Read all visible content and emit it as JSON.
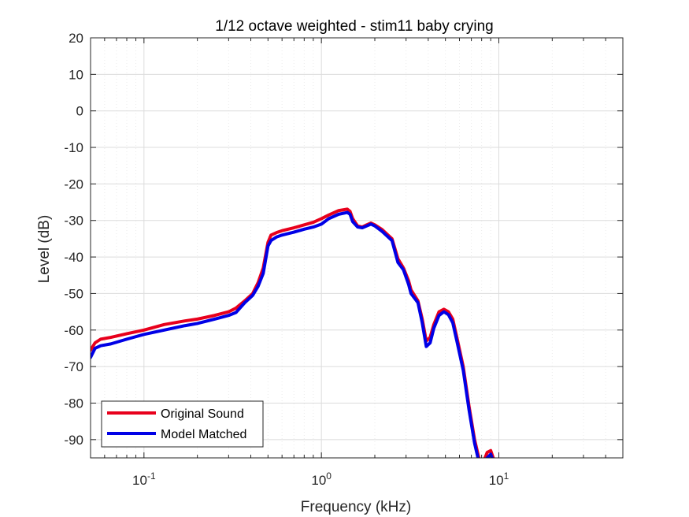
{
  "chart_data": {
    "type": "line",
    "title": "1/12 octave weighted - stim11 baby crying",
    "xlabel": "Frequency (kHz)",
    "ylabel": "Level (dB)",
    "xscale": "log",
    "xlim": [
      0.05,
      50
    ],
    "ylim": [
      -95,
      20
    ],
    "grid": true,
    "legend_placement": "bottom-left",
    "x_ticks": [
      {
        "value": 0.1,
        "base": "10",
        "exp": "-1"
      },
      {
        "value": 1,
        "base": "10",
        "exp": "0"
      },
      {
        "value": 10,
        "base": "10",
        "exp": "1"
      }
    ],
    "y_ticks": [
      {
        "value": 20,
        "label": "20"
      },
      {
        "value": 10,
        "label": "10"
      },
      {
        "value": 0,
        "label": "0"
      },
      {
        "value": -10,
        "label": "-10"
      },
      {
        "value": -20,
        "label": "-20"
      },
      {
        "value": -30,
        "label": "-30"
      },
      {
        "value": -40,
        "label": "-40"
      },
      {
        "value": -50,
        "label": "-50"
      },
      {
        "value": -60,
        "label": "-60"
      },
      {
        "value": -70,
        "label": "-70"
      },
      {
        "value": -80,
        "label": "-80"
      },
      {
        "value": -90,
        "label": "-90"
      }
    ],
    "series": [
      {
        "name": "Original Sound",
        "color": "#e8001c",
        "x": [
          0.05,
          0.053,
          0.057,
          0.065,
          0.08,
          0.1,
          0.13,
          0.17,
          0.2,
          0.25,
          0.3,
          0.33,
          0.37,
          0.41,
          0.44,
          0.47,
          0.5,
          0.52,
          0.56,
          0.6,
          0.7,
          0.8,
          0.9,
          1.0,
          1.1,
          1.25,
          1.4,
          1.45,
          1.5,
          1.6,
          1.7,
          1.8,
          1.9,
          2.0,
          2.2,
          2.5,
          2.7,
          2.9,
          3.1,
          3.2,
          3.5,
          3.7,
          3.9,
          4.1,
          4.3,
          4.6,
          4.9,
          5.2,
          5.5,
          5.8,
          6.3,
          6.8,
          7.3,
          7.8,
          8.2,
          8.6,
          9.0,
          9.3
        ],
        "y": [
          -65.5,
          -63.5,
          -62.5,
          -62.0,
          -61.0,
          -60.0,
          -58.5,
          -57.5,
          -57.0,
          -56.0,
          -55.0,
          -54.0,
          -52.0,
          -50.0,
          -47.0,
          -43.0,
          -36.0,
          -34.0,
          -33.3,
          -32.8,
          -32.0,
          -31.2,
          -30.5,
          -29.5,
          -28.5,
          -27.3,
          -26.9,
          -27.5,
          -29.5,
          -31.5,
          -31.8,
          -31.2,
          -30.7,
          -31.2,
          -32.5,
          -35.0,
          -40.5,
          -43.0,
          -46.5,
          -49.0,
          -52.0,
          -57.0,
          -63.0,
          -62.0,
          -58.5,
          -55.0,
          -54.3,
          -55.0,
          -57.0,
          -62.0,
          -70.0,
          -81.0,
          -90.0,
          -96.0,
          -96.0,
          -93.5,
          -93.0,
          -95.0
        ]
      },
      {
        "name": "Model Matched",
        "color": "#0000e6",
        "x": [
          0.05,
          0.053,
          0.057,
          0.065,
          0.08,
          0.1,
          0.13,
          0.17,
          0.2,
          0.25,
          0.3,
          0.33,
          0.37,
          0.41,
          0.44,
          0.47,
          0.5,
          0.52,
          0.56,
          0.6,
          0.7,
          0.8,
          0.9,
          1.0,
          1.1,
          1.25,
          1.4,
          1.45,
          1.5,
          1.6,
          1.7,
          1.8,
          1.9,
          2.0,
          2.2,
          2.5,
          2.7,
          2.9,
          3.1,
          3.2,
          3.5,
          3.7,
          3.9,
          4.1,
          4.3,
          4.6,
          4.9,
          5.2,
          5.5,
          5.8,
          6.3,
          6.8,
          7.3,
          7.8,
          8.2,
          8.6,
          9.0,
          9.3
        ],
        "y": [
          -67.5,
          -65.0,
          -64.3,
          -63.8,
          -62.5,
          -61.2,
          -60.0,
          -58.8,
          -58.2,
          -57.0,
          -56.0,
          -55.2,
          -52.5,
          -50.5,
          -48.0,
          -44.5,
          -37.0,
          -35.5,
          -34.5,
          -34.0,
          -33.2,
          -32.4,
          -31.8,
          -31.0,
          -29.5,
          -28.3,
          -27.8,
          -28.3,
          -30.3,
          -31.8,
          -32.0,
          -31.5,
          -31.0,
          -31.5,
          -33.0,
          -35.5,
          -41.5,
          -43.5,
          -47.5,
          -50.0,
          -52.5,
          -58.0,
          -64.5,
          -63.5,
          -59.5,
          -56.0,
          -55.0,
          -55.8,
          -58.0,
          -63.0,
          -71.0,
          -82.0,
          -91.0,
          -97.0,
          -97.0,
          -95.0,
          -94.0,
          -96.0
        ]
      }
    ]
  }
}
